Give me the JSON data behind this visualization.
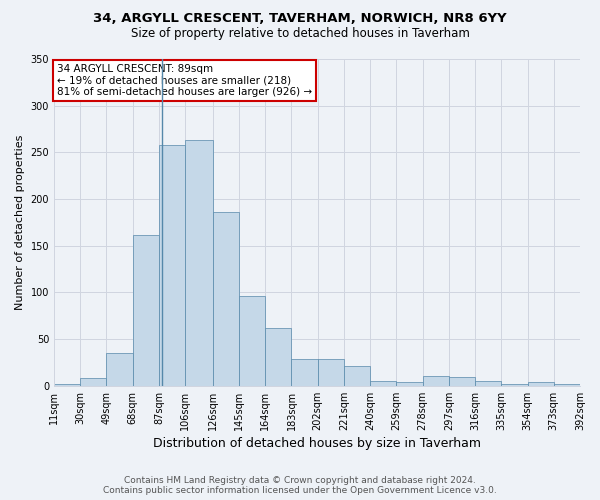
{
  "title1": "34, ARGYLL CRESCENT, TAVERHAM, NORWICH, NR8 6YY",
  "title2": "Size of property relative to detached houses in Taverham",
  "xlabel": "Distribution of detached houses by size in Taverham",
  "ylabel": "Number of detached properties",
  "footer1": "Contains HM Land Registry data © Crown copyright and database right 2024.",
  "footer2": "Contains public sector information licensed under the Open Government Licence v3.0.",
  "annotation_line1": "34 ARGYLL CRESCENT: 89sqm",
  "annotation_line2": "← 19% of detached houses are smaller (218)",
  "annotation_line3": "81% of semi-detached houses are larger (926) →",
  "property_size": 89,
  "bin_edges": [
    11,
    30,
    49,
    68,
    87,
    106,
    126,
    145,
    164,
    183,
    202,
    221,
    240,
    259,
    278,
    297,
    316,
    335,
    354,
    373,
    392
  ],
  "bar_heights": [
    2,
    8,
    35,
    161,
    258,
    263,
    186,
    96,
    62,
    29,
    29,
    21,
    5,
    4,
    10,
    9,
    5,
    2,
    4,
    2
  ],
  "bar_color": "#c5d8e8",
  "bar_edge_color": "#5588aa",
  "highlight_color": "#5588aa",
  "background_color": "#eef2f7",
  "grid_color": "#d0d5e0",
  "annotation_box_color": "#ffffff",
  "annotation_box_edge": "#cc0000",
  "ylim": [
    0,
    350
  ],
  "yticks": [
    0,
    50,
    100,
    150,
    200,
    250,
    300,
    350
  ],
  "title1_fontsize": 9.5,
  "title2_fontsize": 8.5,
  "ylabel_fontsize": 8,
  "xlabel_fontsize": 9,
  "tick_fontsize": 7,
  "footer_fontsize": 6.5,
  "ann_fontsize": 7.5
}
